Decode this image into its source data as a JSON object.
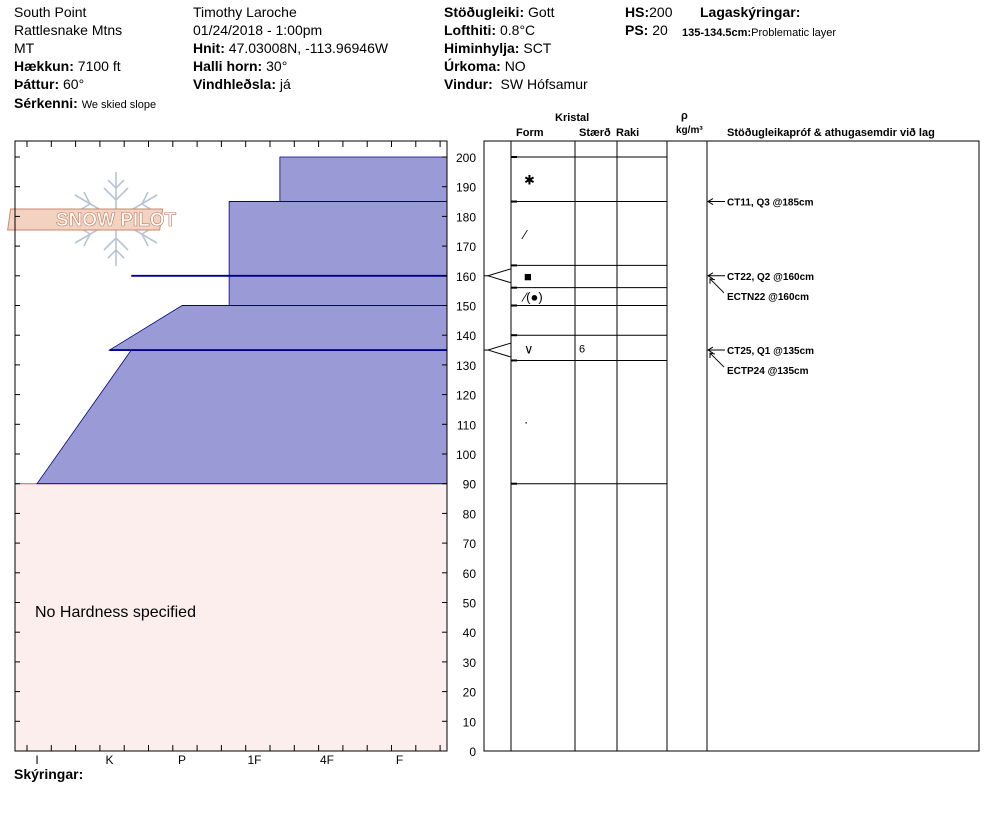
{
  "header": {
    "location": "South Point",
    "range": "Rattlesnake Mtns",
    "state": "MT",
    "elevation_label": "Hækkun:",
    "elevation_value": "7100 ft",
    "aspect_label": "Þáttur:",
    "aspect_value": "60°",
    "features_label": "Sérkenni:",
    "features_value": "We skied slope",
    "observer": "Timothy  Laroche",
    "datetime": "01/24/2018 - 1:00pm",
    "coords_label": "Hnit:",
    "coords_value": "47.03008N, -113.96946W",
    "slope_label": "Halli horn:",
    "slope_value": "30°",
    "wind_loading_label": "Vindhleðsla:",
    "wind_loading_value": "já",
    "stability_label": "Stöðugleiki:",
    "stability_value": "Gott",
    "air_temp_label": "Lofthiti:",
    "air_temp_value": "0.8°C",
    "sky_label": "Himinhylja:",
    "sky_value": "SCT",
    "precip_label": "Úrkoma:",
    "precip_value": "NO",
    "wind_label": "Vindur:",
    "wind_value": "SW Hófsamur",
    "hs_label": "HS:",
    "hs_value": "200",
    "ps_label": "PS:",
    "ps_value": "20",
    "layer_notes_label": "Lagaskýringar:",
    "layer_note_range": "135-134.5cm:",
    "layer_note_text": "Problematic layer"
  },
  "logo_text": "SNOW PILOT",
  "no_hardness_text": "No Hardness specified",
  "notes_label": "Skýringar:",
  "columns": {
    "crystal": "Kristal",
    "form": "Form",
    "size": "Stærð",
    "moisture": "Raki",
    "rho": "ρ",
    "density_unit": "kg/m³",
    "tests": "Stöðugleikapróf & athugasemdir við lag"
  },
  "colors": {
    "hardness_fill": "#9a9ad6",
    "hardness_line": "#00008b",
    "no_hardness_fill": "#fdeeee",
    "no_hardness_border": "#c06060"
  },
  "chart_data": {
    "type": "snow-profile",
    "depth_axis": {
      "unit": "cm",
      "min": 0,
      "max": 200,
      "ticks": [
        0,
        10,
        20,
        30,
        40,
        50,
        60,
        70,
        80,
        90,
        100,
        110,
        120,
        130,
        140,
        150,
        160,
        170,
        180,
        190,
        200
      ]
    },
    "hardness_axis": {
      "ticks": [
        "I",
        "K",
        "P",
        "1F",
        "4F",
        "F"
      ]
    },
    "hardness_profile": [
      {
        "depth": 200,
        "hardness": 3.35
      },
      {
        "depth": 185,
        "hardness": 3.35
      },
      {
        "depth": 185,
        "hardness": 2.65
      },
      {
        "depth": 150,
        "hardness": 2.65
      },
      {
        "depth": 150,
        "hardness": 2.0
      },
      {
        "depth": 135,
        "hardness": 1.0
      },
      {
        "depth": 135,
        "hardness": 1.3
      },
      {
        "depth": 90,
        "hardness": 0.0
      }
    ],
    "hardness_lines": [
      {
        "depth": 160,
        "from_hardness": 1.3
      },
      {
        "depth": 135,
        "from_hardness": 1.0
      }
    ],
    "layer_boundaries": [
      200,
      185,
      163.5,
      156,
      150,
      140,
      131.5,
      90
    ],
    "layers": [
      {
        "depth": 192.5,
        "form": "✱",
        "size": ""
      },
      {
        "depth": 174,
        "form": "⁄",
        "size": ""
      },
      {
        "depth": 160,
        "form": "■",
        "size": ""
      },
      {
        "depth": 153,
        "form": "⁄(●)",
        "size": ""
      },
      {
        "depth": 135.5,
        "form": "∨",
        "size": "6"
      },
      {
        "depth": 111,
        "form": "·",
        "size": ""
      }
    ],
    "weak_layer_markers": [
      160,
      135
    ],
    "stability_tests": [
      {
        "depth": 185,
        "label": "CT11, Q3 @185cm",
        "arrow": true
      },
      {
        "depth": 160,
        "label": "CT22, Q2 @160cm",
        "arrow": true
      },
      {
        "depth": 160,
        "label": "ECTN22 @160cm",
        "arrow": true,
        "offset": 1
      },
      {
        "depth": 135,
        "label": "CT25, Q1 @135cm",
        "arrow": true
      },
      {
        "depth": 135,
        "label": "ECTP24 @135cm",
        "arrow": true,
        "offset": 1
      }
    ]
  }
}
